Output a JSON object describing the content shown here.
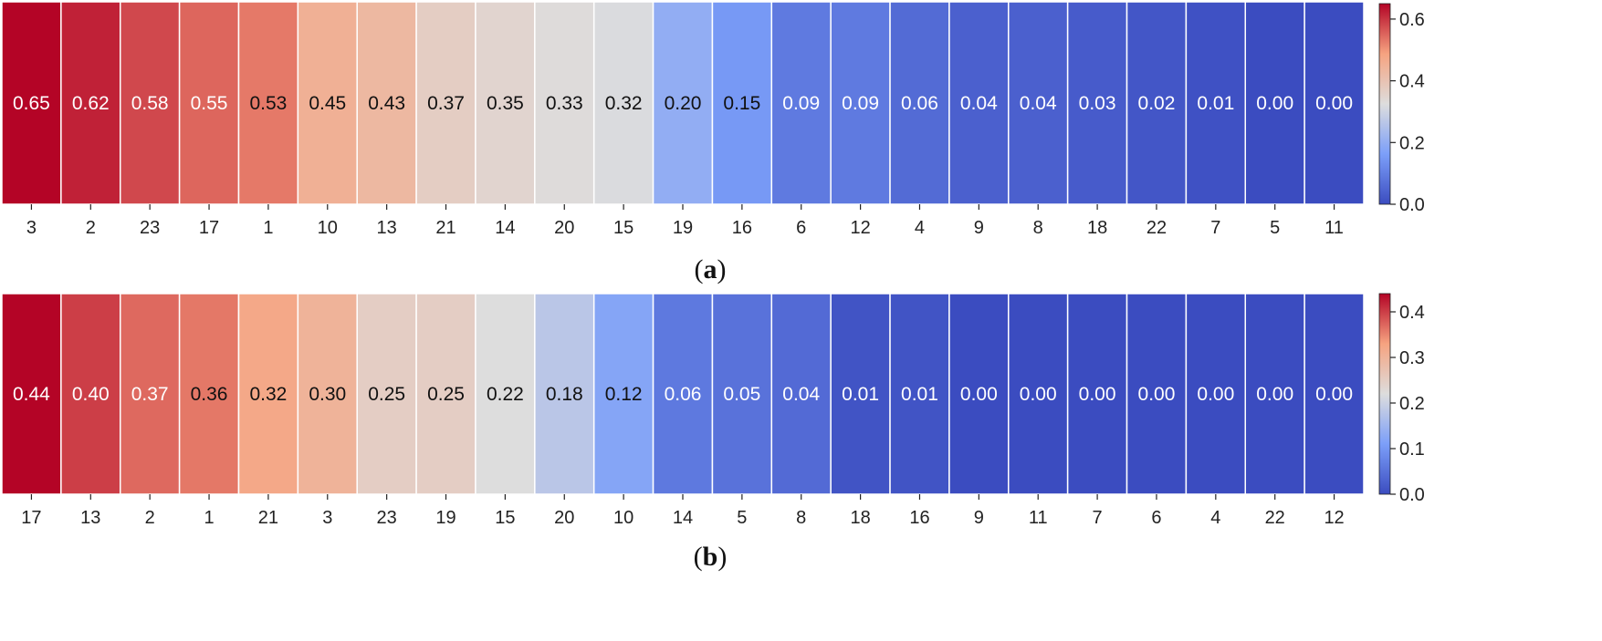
{
  "chart_data": [
    {
      "type": "heatmap",
      "panel": "(a)",
      "panel_letter": "a",
      "categories": [
        "3",
        "2",
        "23",
        "17",
        "1",
        "10",
        "13",
        "21",
        "14",
        "20",
        "15",
        "19",
        "16",
        "6",
        "12",
        "4",
        "9",
        "8",
        "18",
        "22",
        "7",
        "5",
        "11"
      ],
      "values": [
        0.65,
        0.62,
        0.58,
        0.55,
        0.53,
        0.45,
        0.43,
        0.37,
        0.35,
        0.33,
        0.32,
        0.2,
        0.15,
        0.09,
        0.09,
        0.06,
        0.04,
        0.04,
        0.03,
        0.02,
        0.01,
        0.0,
        0.0
      ],
      "value_labels": [
        "0.65",
        "0.62",
        "0.58",
        "0.55",
        "0.53",
        "0.45",
        "0.43",
        "0.37",
        "0.35",
        "0.33",
        "0.32",
        "0.20",
        "0.15",
        "0.09",
        "0.09",
        "0.06",
        "0.04",
        "0.04",
        "0.03",
        "0.02",
        "0.01",
        "0.00",
        "0.00"
      ],
      "colorbar": {
        "vmin": 0.0,
        "vmax": 0.65,
        "ticks": [
          0.0,
          0.2,
          0.4,
          0.6
        ],
        "tick_labels": [
          "0.0",
          "0.2",
          "0.4",
          "0.6"
        ]
      },
      "colormap": "coolwarm"
    },
    {
      "type": "heatmap",
      "panel": "(b)",
      "panel_letter": "b",
      "categories": [
        "17",
        "13",
        "2",
        "1",
        "21",
        "3",
        "23",
        "19",
        "15",
        "20",
        "10",
        "14",
        "5",
        "8",
        "18",
        "16",
        "9",
        "11",
        "7",
        "6",
        "4",
        "22",
        "12"
      ],
      "values": [
        0.44,
        0.4,
        0.37,
        0.36,
        0.32,
        0.3,
        0.25,
        0.25,
        0.22,
        0.18,
        0.12,
        0.06,
        0.05,
        0.04,
        0.01,
        0.01,
        0.0,
        0.0,
        0.0,
        0.0,
        0.0,
        0.0,
        0.0
      ],
      "value_labels": [
        "0.44",
        "0.40",
        "0.37",
        "0.36",
        "0.32",
        "0.30",
        "0.25",
        "0.25",
        "0.22",
        "0.18",
        "0.12",
        "0.06",
        "0.05",
        "0.04",
        "0.01",
        "0.01",
        "0.00",
        "0.00",
        "0.00",
        "0.00",
        "0.00",
        "0.00",
        "0.00"
      ],
      "colorbar": {
        "vmin": 0.0,
        "vmax": 0.44,
        "ticks": [
          0.0,
          0.1,
          0.2,
          0.3,
          0.4
        ],
        "tick_labels": [
          "0.0",
          "0.1",
          "0.2",
          "0.3",
          "0.4"
        ]
      },
      "colormap": "coolwarm"
    }
  ]
}
